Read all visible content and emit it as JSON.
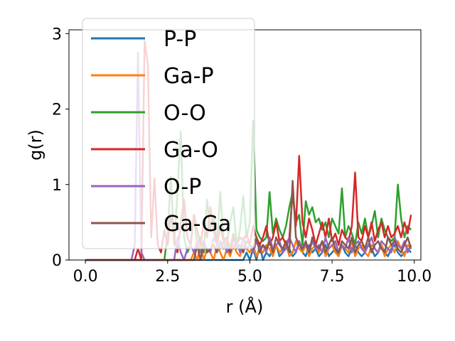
{
  "chart_data": {
    "type": "line",
    "xlabel": "r (Å)",
    "ylabel": "g(r)",
    "xlim": [
      -0.5,
      10.2
    ],
    "ylim": [
      0,
      3.05
    ],
    "xticks": [
      0.0,
      2.5,
      5.0,
      7.5,
      10.0
    ],
    "xtick_labels": [
      "0.0",
      "2.5",
      "5.0",
      "7.5",
      "10.0"
    ],
    "yticks": [
      0,
      1,
      2,
      3
    ],
    "ytick_labels": [
      "0",
      "1",
      "2",
      "3"
    ],
    "grid": false,
    "legend_position": "upper-left",
    "x": [
      0.0,
      0.1,
      0.2,
      0.3,
      0.4,
      0.5,
      0.6,
      0.7,
      0.8,
      0.9,
      1.0,
      1.1,
      1.2,
      1.3,
      1.4,
      1.5,
      1.6,
      1.7,
      1.8,
      1.9,
      2.0,
      2.1,
      2.2,
      2.3,
      2.4,
      2.5,
      2.6,
      2.7,
      2.8,
      2.9,
      3.0,
      3.1,
      3.2,
      3.3,
      3.4,
      3.5,
      3.6,
      3.7,
      3.8,
      3.9,
      4.0,
      4.1,
      4.2,
      4.3,
      4.4,
      4.5,
      4.6,
      4.7,
      4.8,
      4.9,
      5.0,
      5.1,
      5.2,
      5.3,
      5.4,
      5.5,
      5.6,
      5.7,
      5.8,
      5.9,
      6.0,
      6.1,
      6.2,
      6.3,
      6.4,
      6.5,
      6.6,
      6.7,
      6.8,
      6.9,
      7.0,
      7.1,
      7.2,
      7.3,
      7.4,
      7.5,
      7.6,
      7.7,
      7.8,
      7.9,
      8.0,
      8.1,
      8.2,
      8.3,
      8.4,
      8.5,
      8.6,
      8.7,
      8.8,
      8.9,
      9.0,
      9.1,
      9.2,
      9.3,
      9.4,
      9.5,
      9.6,
      9.7,
      9.8,
      9.9
    ],
    "series": [
      {
        "name": "P-P",
        "color": "#1f77b4",
        "values": [
          0,
          0,
          0,
          0,
          0,
          0,
          0,
          0,
          0,
          0,
          0,
          0,
          0,
          0,
          0,
          0,
          0,
          0,
          0,
          0,
          0,
          0,
          0,
          0,
          0,
          0,
          0,
          0,
          0,
          0,
          0,
          0,
          0,
          0,
          0,
          0,
          0,
          0,
          0,
          0,
          0,
          0,
          0,
          0,
          0,
          0,
          0,
          0,
          0,
          0.1,
          0,
          0.15,
          0,
          0.2,
          0,
          0.1,
          0.05,
          0.15,
          0.2,
          0.05,
          0.1,
          0.2,
          0.15,
          0.05,
          0.1,
          0.25,
          0.1,
          0.05,
          0.2,
          0.1,
          0.15,
          0.05,
          0.1,
          0.2,
          0.05,
          0.1,
          0.15,
          0.05,
          0.2,
          0.1,
          0.05,
          0.15,
          0.2,
          0.1,
          0.05,
          0.1,
          0.2,
          0.15,
          0.05,
          0.1,
          0.2,
          0.1,
          0.05,
          0.15,
          0.2,
          0.1,
          0.05,
          0.1,
          0.15,
          0.1
        ]
      },
      {
        "name": "Ga-P",
        "color": "#ff7f0e",
        "values": [
          0,
          0,
          0,
          0,
          0,
          0,
          0,
          0,
          0,
          0,
          0,
          0,
          0,
          0,
          0,
          0,
          0,
          0,
          0,
          0,
          0,
          0,
          0,
          0,
          0,
          0,
          0,
          0,
          0,
          0,
          0,
          0,
          0,
          0.1,
          0,
          0.2,
          0,
          0.15,
          0.1,
          0,
          0.2,
          0.1,
          0,
          0.15,
          0.05,
          0.2,
          0.1,
          0.05,
          0.2,
          0.15,
          0.1,
          0.2,
          0.05,
          0.15,
          0.1,
          0.2,
          0.15,
          0.05,
          0.2,
          0.1,
          0.15,
          0.2,
          0.05,
          0.1,
          0.25,
          0.15,
          0.1,
          0.2,
          0.05,
          0.15,
          0.2,
          0.1,
          0.25,
          0.05,
          0.15,
          0.2,
          0.1,
          0.05,
          0.2,
          0.15,
          0.1,
          0.25,
          0.05,
          0.15,
          0.2,
          0.1,
          0.05,
          0.2,
          0.15,
          0.1,
          0.2,
          0.05,
          0.15,
          0.2,
          0.1,
          0.25,
          0.15,
          0.05,
          0.2,
          0.15
        ]
      },
      {
        "name": "O-O",
        "color": "#2ca02c",
        "values": [
          0,
          0,
          0,
          0,
          0,
          0,
          0,
          0,
          0,
          0,
          0,
          0,
          0,
          0,
          0,
          0,
          0,
          0,
          0,
          0,
          0,
          0,
          0,
          0,
          0,
          0.35,
          1.1,
          0.2,
          0.9,
          1.7,
          0.3,
          0.1,
          0.2,
          0.6,
          0.2,
          0.3,
          0.1,
          0.8,
          0.4,
          0.6,
          0.2,
          0.9,
          0.3,
          0.2,
          0.5,
          0.7,
          0.2,
          0.4,
          0.85,
          0.3,
          0.5,
          1.85,
          0.4,
          0.3,
          0.25,
          0.3,
          0.9,
          0.35,
          0.55,
          0.4,
          0.3,
          0.45,
          0.7,
          0.9,
          0.5,
          0.6,
          0.2,
          0.78,
          0.6,
          0.7,
          0.5,
          0.55,
          0.4,
          0.5,
          0.3,
          0.55,
          0.45,
          0.35,
          0.95,
          0.3,
          0.45,
          0.35,
          0.2,
          0.5,
          0.35,
          0.55,
          0.3,
          0.45,
          0.65,
          0.3,
          0.55,
          0.4,
          0.3,
          0.25,
          0.3,
          1.0,
          0.55,
          0.3,
          0.45,
          0.4
        ]
      },
      {
        "name": "Ga-O",
        "color": "#d62728",
        "values": [
          0,
          0,
          0,
          0,
          0,
          0,
          0,
          0,
          0,
          0,
          0,
          0,
          0,
          0,
          0,
          0,
          0.15,
          0,
          2.9,
          2.6,
          0.3,
          1.08,
          0.2,
          0.1,
          0.4,
          0.2,
          0.6,
          0.3,
          0.1,
          0.5,
          0.8,
          0.3,
          0.2,
          0.6,
          0.4,
          0.2,
          0.5,
          0.3,
          0.7,
          0.4,
          0.2,
          0.45,
          0.25,
          0.3,
          0.15,
          0.35,
          0.2,
          0.3,
          0.25,
          0.35,
          0.2,
          0.45,
          0.3,
          0.2,
          0.3,
          0.45,
          0.2,
          0.3,
          0.5,
          0.25,
          0.3,
          0.2,
          0.3,
          0.9,
          0.45,
          1.38,
          0.5,
          0.3,
          0.55,
          0.4,
          0.2,
          0.35,
          0.5,
          0.3,
          0.55,
          0.25,
          0.35,
          0.2,
          0.4,
          0.3,
          0.25,
          0.45,
          1.16,
          0.3,
          0.25,
          0.45,
          0.3,
          0.5,
          0.25,
          0.4,
          0.5,
          0.3,
          0.45,
          0.3,
          0.35,
          0.45,
          0.3,
          0.5,
          0.35,
          0.6
        ]
      },
      {
        "name": "O-P",
        "color": "#9467bd",
        "values": [
          0,
          0,
          0,
          0,
          0,
          0,
          0,
          0,
          0,
          0,
          0,
          0,
          0,
          0,
          0,
          0.2,
          2.75,
          0.1,
          0,
          0,
          0,
          0,
          0,
          0,
          0,
          0,
          0,
          0,
          0.3,
          0.1,
          0,
          0.15,
          0.2,
          0.1,
          0.25,
          0.1,
          0.2,
          0.15,
          0.1,
          0.3,
          0.2,
          0.15,
          0.25,
          0.1,
          0.2,
          0.15,
          0.25,
          0.1,
          0.3,
          0.15,
          0.2,
          0.1,
          0.25,
          0.15,
          0.2,
          0.1,
          0.3,
          0.15,
          0.2,
          0.25,
          0.1,
          0.15,
          0.3,
          0.2,
          0.1,
          0.25,
          0.15,
          0.2,
          0.1,
          0.25,
          0.15,
          0.2,
          0.1,
          0.3,
          0.15,
          0.2,
          0.25,
          0.1,
          0.2,
          0.15,
          0.3,
          0.1,
          0.2,
          0.25,
          0.15,
          0.1,
          0.2,
          0.3,
          0.15,
          0.1,
          0.25,
          0.2,
          0.15,
          0.1,
          0.3,
          0.2,
          0.15,
          0.25,
          0.1,
          0.2
        ]
      },
      {
        "name": "Ga-Ga",
        "color": "#8c564b",
        "values": [
          0,
          0,
          0,
          0,
          0,
          0,
          0,
          0,
          0,
          0,
          0,
          0,
          0,
          0,
          0,
          0,
          0,
          0,
          0,
          0,
          0,
          0,
          0,
          0,
          0,
          0,
          0,
          0,
          0,
          0,
          0,
          0,
          0,
          0,
          0.2,
          0,
          0.25,
          0.1,
          0.15,
          0.2,
          0.1,
          0.25,
          0.15,
          0.2,
          0.1,
          0.3,
          0.15,
          0.2,
          0.1,
          0.25,
          0.2,
          0.15,
          0.3,
          0.1,
          0.2,
          0.15,
          0.25,
          0.1,
          0.3,
          0.2,
          0.15,
          0.25,
          0.1,
          1.05,
          0.3,
          0.2,
          0.15,
          0.25,
          0.1,
          0.3,
          0.2,
          0.15,
          0.25,
          0.1,
          0.2,
          0.3,
          0.15,
          0.1,
          0.25,
          0.2,
          0.15,
          0.3,
          0.1,
          0.2,
          0.25,
          0.15,
          0.3,
          0.1,
          0.2,
          0.25,
          0.15,
          0.1,
          0.3,
          0.2,
          0.25,
          0.15,
          0.1,
          0.2,
          0.3,
          0.15
        ]
      }
    ]
  }
}
